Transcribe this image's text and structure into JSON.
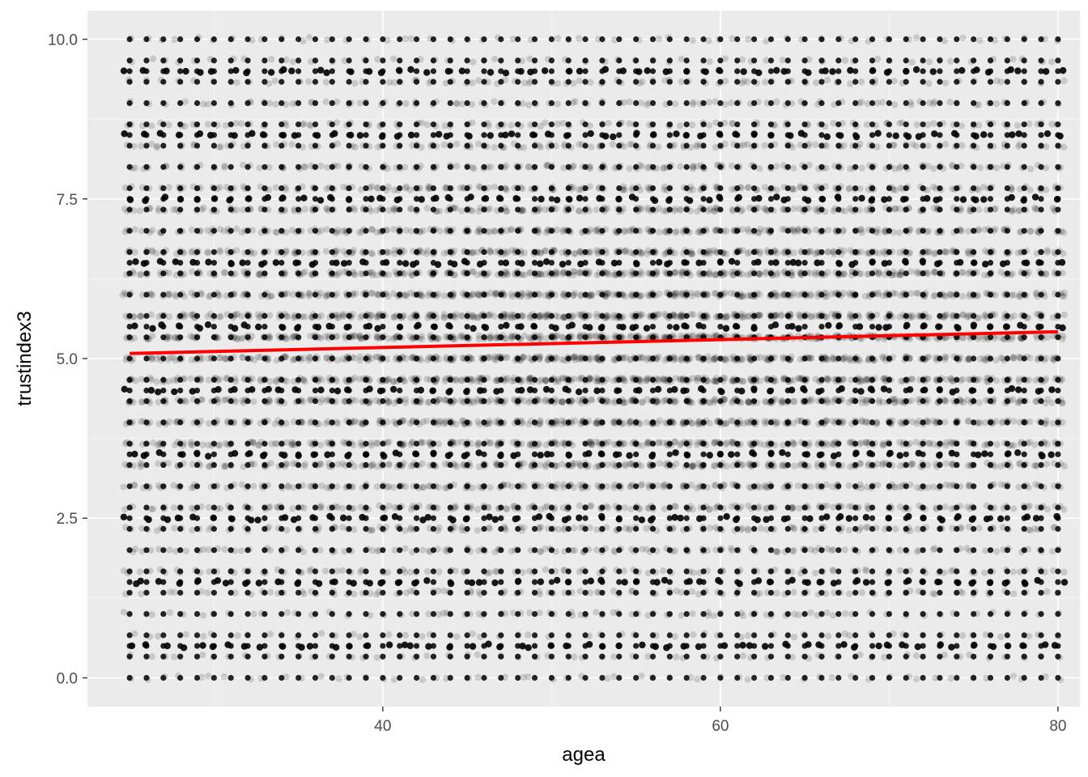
{
  "chart_data": {
    "type": "scatter",
    "title": "",
    "xlabel": "agea",
    "ylabel": "trustindex3",
    "xlim": [
      22.5,
      81.3
    ],
    "ylim": [
      -0.45,
      10.45
    ],
    "x_ticks": [
      40,
      60,
      80
    ],
    "x_tick_labels": [
      "40",
      "60",
      "80"
    ],
    "x_minor_ticks": [
      30,
      50,
      70
    ],
    "y_ticks": [
      0,
      2.5,
      5,
      7.5,
      10
    ],
    "y_tick_labels": [
      "0.0",
      "2.5",
      "5.0",
      "7.5",
      "10.0"
    ],
    "y_minor_ticks": [
      1.25,
      3.75,
      6.25,
      8.75
    ],
    "grid": true,
    "legend": "none",
    "point_color": "#000000",
    "point_alpha": 0.15,
    "points_note_values": {
      "x_range": [
        25,
        80
      ],
      "x_step": 1,
      "y_levels": [
        0,
        0.333,
        0.5,
        0.667,
        1,
        1.333,
        1.5,
        1.667,
        2,
        2.333,
        2.5,
        2.667,
        3,
        3.333,
        3.5,
        3.667,
        4,
        4.333,
        4.5,
        4.667,
        5,
        5.333,
        5.5,
        5.667,
        6,
        6.333,
        6.5,
        6.667,
        7,
        7.333,
        7.5,
        7.667,
        8,
        8.333,
        8.5,
        8.667,
        9,
        9.333,
        9.5,
        9.667,
        10
      ]
    },
    "fit_line": {
      "method": "lm",
      "color": "#ff0000",
      "x": [
        25,
        80
      ],
      "y": [
        5.08,
        5.42
      ]
    }
  },
  "colors": {
    "panel_background": "#ebebeb",
    "grid_major": "#ffffff",
    "grid_minor": "#f5f5f5",
    "tick_mark": "#333333"
  }
}
